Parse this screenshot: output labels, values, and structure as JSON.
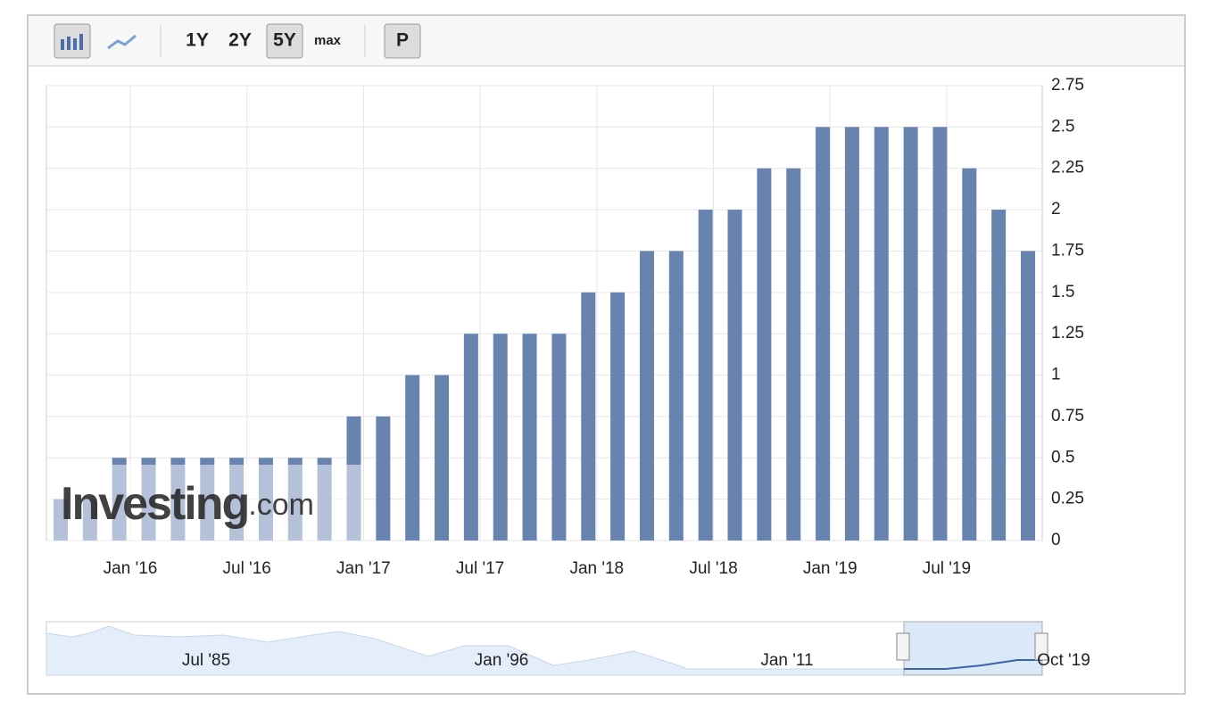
{
  "toolbar": {
    "buttons": [
      "1Y",
      "2Y",
      "5Y",
      "max",
      "P"
    ],
    "active": "5Y"
  },
  "watermark": {
    "brand": "Investing",
    "suffix": ".com"
  },
  "chart_data": {
    "type": "bar",
    "color": "#6883b0",
    "categories": [
      null,
      null,
      null,
      null,
      null,
      null,
      null,
      null,
      null,
      null,
      null,
      null,
      null,
      null,
      null,
      null,
      null,
      null,
      null,
      null,
      null,
      null,
      null,
      null,
      null,
      null,
      null,
      null,
      null,
      null,
      null,
      null,
      null,
      null
    ],
    "values": [
      0.25,
      0.25,
      0.5,
      0.5,
      0.5,
      0.5,
      0.5,
      0.5,
      0.5,
      0.5,
      0.75,
      0.75,
      1,
      1,
      1.25,
      1.25,
      1.25,
      1.25,
      1.5,
      1.5,
      1.75,
      1.75,
      2,
      2,
      2.25,
      2.25,
      2.5,
      2.5,
      2.5,
      2.5,
      2.5,
      2.25,
      2,
      1.75
    ],
    "ylim": [
      0,
      2.75
    ],
    "yticks": [
      0,
      0.25,
      0.5,
      0.75,
      1,
      1.25,
      1.5,
      1.75,
      2,
      2.25,
      2.5,
      2.75
    ],
    "xtick_labels": [
      "Jan '16",
      "Jul '16",
      "Jan '17",
      "Jul '17",
      "Jan '18",
      "Jul '18",
      "Jan '19",
      "Jul '19"
    ],
    "grid": true,
    "navigator_labels": [
      "Jul '85",
      "Jan '96",
      "Jan '11",
      "Oct '19"
    ]
  }
}
